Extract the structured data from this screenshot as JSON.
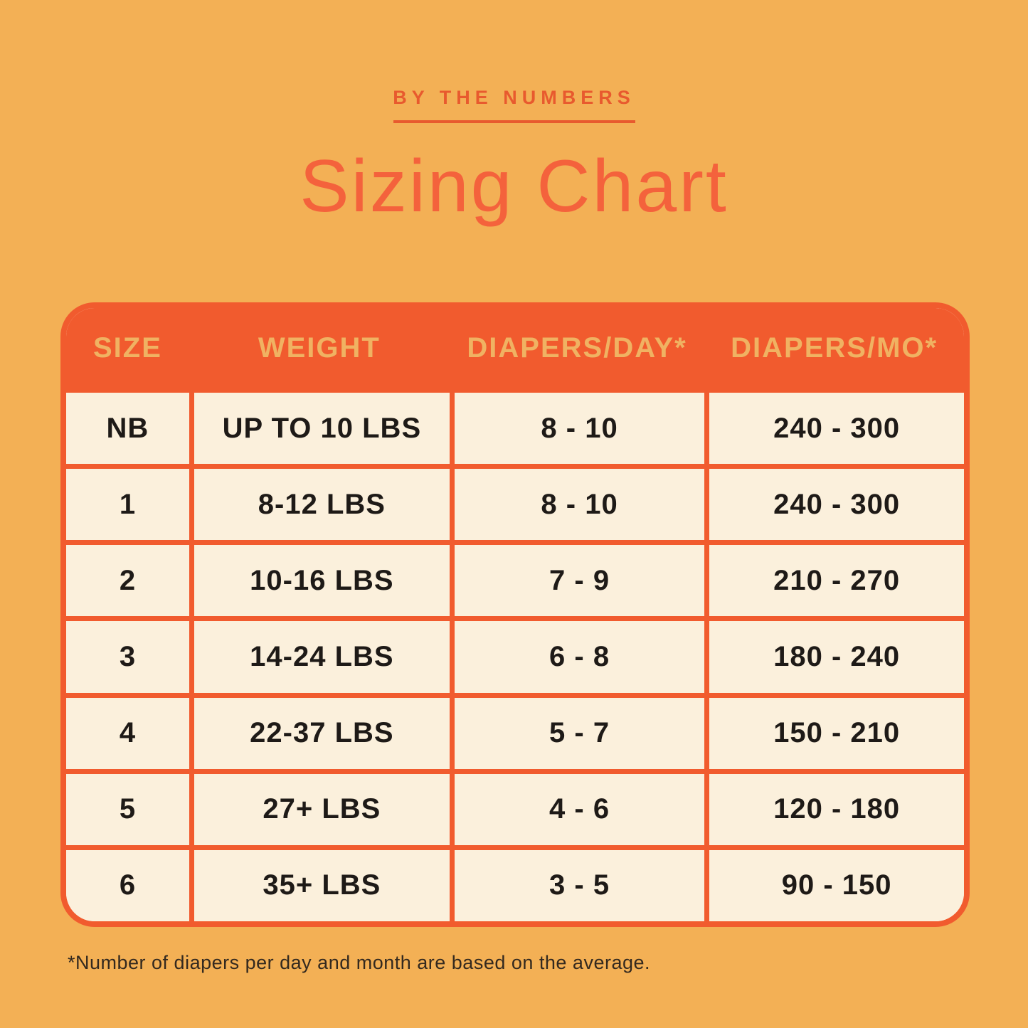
{
  "page": {
    "background_color": "#F3B055",
    "accent_color": "#F15B2E",
    "cream_color": "#FBF0DC",
    "gold_color": "#F0B262"
  },
  "header": {
    "eyebrow": "BY THE NUMBERS",
    "title": "Sizing Chart"
  },
  "table": {
    "columns": [
      "SIZE",
      "WEIGHT",
      "DIAPERS/DAY*",
      "DIAPERS/MO*"
    ],
    "rows": [
      [
        "NB",
        "UP TO 10 LBS",
        "8 - 10",
        "240 - 300"
      ],
      [
        "1",
        "8-12 LBS",
        "8 - 10",
        "240 - 300"
      ],
      [
        "2",
        "10-16 LBS",
        "7 - 9",
        "210 - 270"
      ],
      [
        "3",
        "14-24 LBS",
        "6 - 8",
        "180 - 240"
      ],
      [
        "4",
        "22-37 LBS",
        "5 - 7",
        "150 - 210"
      ],
      [
        "5",
        "27+ LBS",
        "4 - 6",
        "120 - 180"
      ],
      [
        "6",
        "35+ LBS",
        "3 - 5",
        "90 - 150"
      ]
    ]
  },
  "footnote": "*Number of diapers per day and month are based on the average.",
  "chart_data": {
    "type": "table",
    "title": "Sizing Chart",
    "subtitle": "BY THE NUMBERS",
    "columns": [
      "SIZE",
      "WEIGHT",
      "DIAPERS/DAY*",
      "DIAPERS/MO*"
    ],
    "rows": [
      [
        "NB",
        "UP TO 10 LBS",
        "8 - 10",
        "240 - 300"
      ],
      [
        "1",
        "8-12 LBS",
        "8 - 10",
        "240 - 300"
      ],
      [
        "2",
        "10-16 LBS",
        "7 - 9",
        "210 - 270"
      ],
      [
        "3",
        "14-24 LBS",
        "6 - 8",
        "180 - 240"
      ],
      [
        "4",
        "22-37 LBS",
        "5 - 7",
        "150 - 210"
      ],
      [
        "5",
        "27+ LBS",
        "4 - 6",
        "120 - 180"
      ],
      [
        "6",
        "35+ LBS",
        "3 - 5",
        "90 - 150"
      ]
    ],
    "footnote": "*Number of diapers per day and month are based on the average."
  }
}
